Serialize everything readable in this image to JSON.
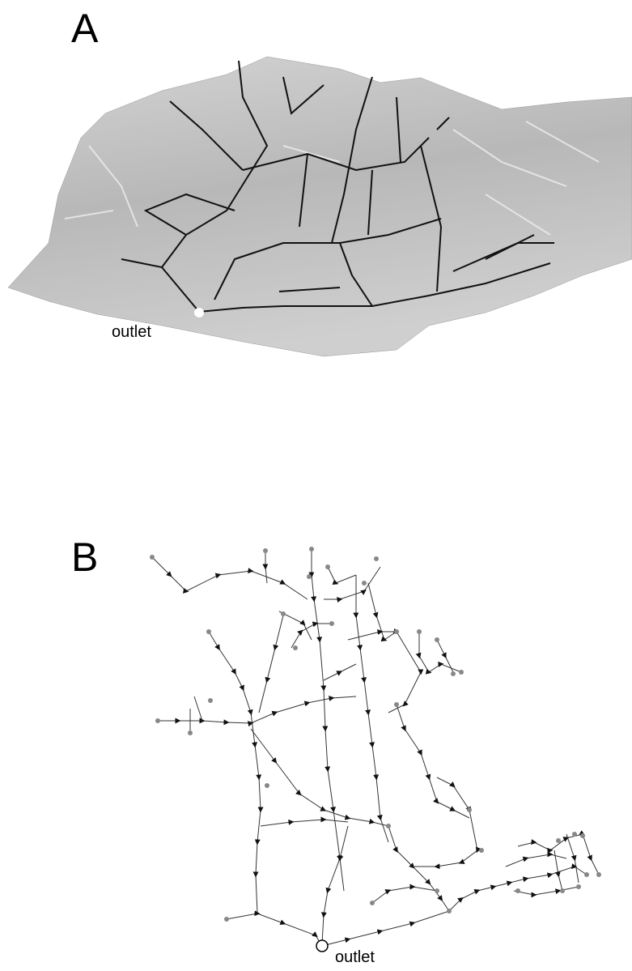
{
  "panels": [
    {
      "label": "A",
      "annotation": "outlet"
    },
    {
      "label": "B",
      "annotation": "outlet"
    }
  ]
}
